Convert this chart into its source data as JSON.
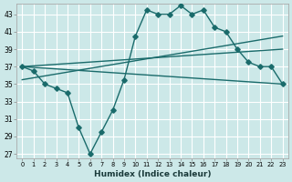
{
  "xlabel": "Humidex (Indice chaleur)",
  "bg_color": "#cce8e8",
  "line_color": "#1a6b6b",
  "grid_color": "#ffffff",
  "xlim": [
    -0.5,
    23.5
  ],
  "ylim": [
    26.5,
    44.2
  ],
  "yticks": [
    27,
    29,
    31,
    33,
    35,
    37,
    39,
    41,
    43
  ],
  "xticks": [
    0,
    1,
    2,
    3,
    4,
    5,
    6,
    7,
    8,
    9,
    10,
    11,
    12,
    13,
    14,
    15,
    16,
    17,
    18,
    19,
    20,
    21,
    22,
    23
  ],
  "line1_x": [
    0,
    1,
    2,
    3,
    4,
    5,
    6,
    7,
    8,
    9,
    10,
    11,
    12,
    13,
    14,
    15,
    16,
    17,
    18,
    19,
    20,
    21,
    22,
    23
  ],
  "line1_y": [
    37,
    36.5,
    35,
    34.5,
    34,
    30,
    27,
    29.5,
    32,
    35.5,
    40.5,
    43.5,
    43,
    43,
    44,
    43,
    43.5,
    41.5,
    41,
    39,
    37.5,
    37,
    37,
    35
  ],
  "line2_x": [
    0,
    23
  ],
  "line2_y": [
    37,
    35
  ],
  "line3_x": [
    0,
    23
  ],
  "line3_y": [
    37,
    39
  ],
  "line4_x": [
    0,
    23
  ],
  "line4_y": [
    35.5,
    40.5
  ]
}
